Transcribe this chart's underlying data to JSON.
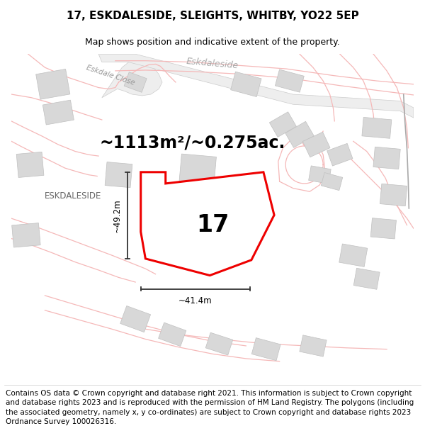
{
  "title": "17, ESKDALESIDE, SLEIGHTS, WHITBY, YO22 5EP",
  "subtitle": "Map shows position and indicative extent of the property.",
  "footer": "Contains OS data © Crown copyright and database right 2021. This information is subject to Crown copyright and database rights 2023 and is reproduced with the permission of HM Land Registry. The polygons (including the associated geometry, namely x, y co-ordinates) are subject to Crown copyright and database rights 2023 Ordnance Survey 100026316.",
  "area_label": "~1113m²/~0.275ac.",
  "width_label": "~41.4m",
  "height_label": "~49.2m",
  "street_label": "ESKDALESIDE",
  "plot_number": "17",
  "map_bg": "#ffffff",
  "plot_color": "#ee0000",
  "road_stroke": "#f5b8b8",
  "building_color": "#d8d8d8",
  "building_edge": "#c0c0c0",
  "road_fill": "#e8e8e8",
  "title_fontsize": 11,
  "subtitle_fontsize": 9,
  "footer_fontsize": 7.5,
  "label_color_street": "#aaaaaa",
  "dim_color": "#333333",
  "area_fontsize": 17,
  "street_fontsize": 8.5,
  "plot_num_fontsize": 24
}
